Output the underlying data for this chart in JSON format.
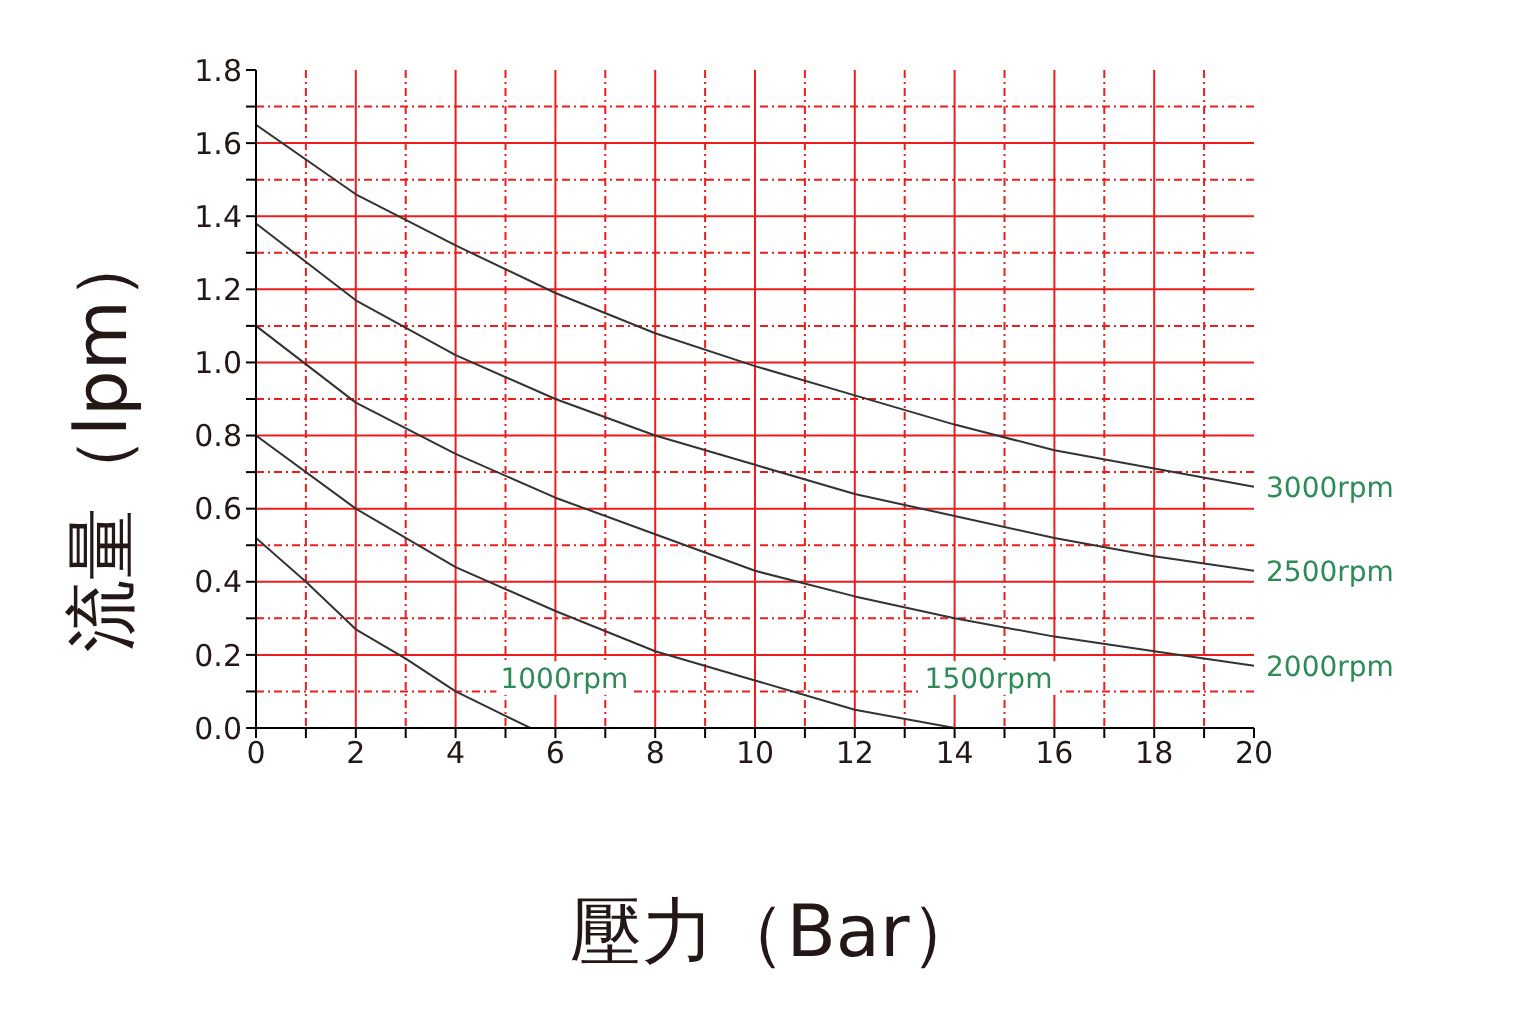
{
  "chart_data": {
    "type": "line",
    "xlabel": "壓力（Bar）",
    "ylabel": "流量（lpm）",
    "xlim": [
      0,
      20
    ],
    "ylim": [
      0,
      1.8
    ],
    "xticks": [
      0,
      {
        "value": 1,
        "label": null
      },
      2,
      {
        "value": 3,
        "label": null
      },
      4,
      {
        "value": 5,
        "label": null
      },
      6,
      {
        "value": 7,
        "label": null
      },
      8,
      {
        "value": 9,
        "label": null
      },
      10,
      {
        "value": 11,
        "label": null
      },
      12,
      {
        "value": 13,
        "label": null
      },
      14,
      {
        "value": 15,
        "label": null
      },
      16,
      {
        "value": 17,
        "label": null
      },
      18,
      {
        "value": 19,
        "label": null
      },
      20
    ],
    "yticks": [
      {
        "value": 0,
        "label": "0.0"
      },
      {
        "value": 0.1,
        "label": null
      },
      {
        "value": 0.2,
        "label": "0.2"
      },
      {
        "value": 0.3,
        "label": null
      },
      {
        "value": 0.4,
        "label": "0.4"
      },
      {
        "value": 0.5,
        "label": null
      },
      {
        "value": 0.6,
        "label": "0.6"
      },
      {
        "value": 0.7,
        "label": null
      },
      {
        "value": 0.8,
        "label": "0.8"
      },
      {
        "value": 0.9,
        "label": null
      },
      {
        "value": 1,
        "label": "1.0"
      },
      {
        "value": 1.1,
        "label": null
      },
      {
        "value": 1.2,
        "label": "1.2"
      },
      {
        "value": 1.3,
        "label": null
      },
      {
        "value": 1.4,
        "label": "1.4"
      },
      {
        "value": 1.5,
        "label": null
      },
      {
        "value": 1.6,
        "label": "1.6"
      },
      {
        "value": 1.7,
        "label": null
      },
      {
        "value": 1.8,
        "label": "1.8"
      }
    ],
    "grid": true,
    "marker": "none",
    "line_style": "solid",
    "series": [
      {
        "name": "3000rpm",
        "color": "#333333",
        "x": [
          0,
          2,
          4,
          6,
          8,
          10,
          12,
          14,
          16,
          18,
          20
        ],
        "values": [
          1.65,
          1.46,
          1.32,
          1.19,
          1.08,
          0.99,
          0.91,
          0.83,
          0.76,
          0.71,
          0.66
        ]
      },
      {
        "name": "2500rpm",
        "color": "#333333",
        "x": [
          0,
          2,
          4,
          6,
          8,
          10,
          12,
          14,
          16,
          18,
          20
        ],
        "values": [
          1.38,
          1.17,
          1.02,
          0.9,
          0.8,
          0.72,
          0.64,
          0.58,
          0.52,
          0.47,
          0.43
        ]
      },
      {
        "name": "2000rpm",
        "color": "#333333",
        "x": [
          0,
          2,
          4,
          6,
          8,
          10,
          12,
          14,
          16,
          18,
          20
        ],
        "values": [
          1.1,
          0.89,
          0.75,
          0.63,
          0.53,
          0.43,
          0.36,
          0.3,
          0.25,
          0.21,
          0.17
        ]
      },
      {
        "name": "1500rpm",
        "color": "#333333",
        "x": [
          0,
          2,
          4,
          6,
          8,
          10,
          12,
          14
        ],
        "values": [
          0.8,
          0.6,
          0.44,
          0.32,
          0.21,
          0.13,
          0.05,
          0
        ]
      },
      {
        "name": "1000rpm",
        "color": "#333333",
        "x": [
          0,
          1,
          2,
          3,
          4,
          5.5
        ],
        "values": [
          0.52,
          0.4,
          0.27,
          0.19,
          0.1,
          0
        ]
      }
    ]
  }
}
